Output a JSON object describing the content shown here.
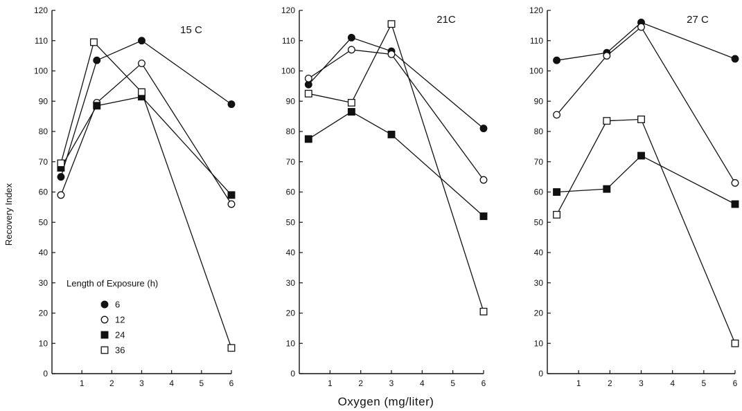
{
  "chart_data": {
    "type": "line",
    "ylabel": "Recovery Index",
    "xlabel": "Oxygen (mg/liter)",
    "ylim": [
      0,
      120
    ],
    "yticks": [
      0,
      10,
      20,
      30,
      40,
      50,
      60,
      70,
      80,
      90,
      100,
      110,
      120
    ],
    "xlim": [
      0,
      6
    ],
    "xticks": [
      1,
      2,
      3,
      4,
      5,
      6
    ],
    "grid": false,
    "legend": {
      "title": "Length of Exposure (h)",
      "placement": "bottom-left of first panel",
      "entries": [
        {
          "label": "6",
          "marker": "filled-circle"
        },
        {
          "label": "12",
          "marker": "open-circle"
        },
        {
          "label": "24",
          "marker": "filled-square"
        },
        {
          "label": "36",
          "marker": "open-square"
        }
      ]
    },
    "panels": [
      {
        "title": "15 C",
        "series": [
          {
            "exposure": "6",
            "marker": "filled-circle",
            "points": [
              [
                0.3,
                65
              ],
              [
                1.5,
                103.5
              ],
              [
                3.0,
                110
              ],
              [
                6.0,
                89
              ]
            ]
          },
          {
            "exposure": "12",
            "marker": "open-circle",
            "points": [
              [
                0.3,
                59
              ],
              [
                1.5,
                89.5
              ],
              [
                3.0,
                102.5
              ],
              [
                6.0,
                56
              ]
            ]
          },
          {
            "exposure": "24",
            "marker": "filled-square",
            "points": [
              [
                0.3,
                68
              ],
              [
                1.5,
                88.5
              ],
              [
                3.0,
                91.5
              ],
              [
                6.0,
                59
              ]
            ]
          },
          {
            "exposure": "36",
            "marker": "open-square",
            "points": [
              [
                0.3,
                69.5
              ],
              [
                1.4,
                109.5
              ],
              [
                3.0,
                93
              ],
              [
                6.0,
                8.5
              ]
            ]
          }
        ]
      },
      {
        "title": "21C",
        "series": [
          {
            "exposure": "6",
            "marker": "filled-circle",
            "points": [
              [
                0.3,
                95.5
              ],
              [
                1.7,
                111
              ],
              [
                3.0,
                106.5
              ],
              [
                6.0,
                81
              ]
            ]
          },
          {
            "exposure": "12",
            "marker": "open-circle",
            "points": [
              [
                0.3,
                97.5
              ],
              [
                1.7,
                107
              ],
              [
                3.0,
                105.5
              ],
              [
                6.0,
                64
              ]
            ]
          },
          {
            "exposure": "24",
            "marker": "filled-square",
            "points": [
              [
                0.3,
                77.5
              ],
              [
                1.7,
                86.5
              ],
              [
                3.0,
                79
              ],
              [
                6.0,
                52
              ]
            ]
          },
          {
            "exposure": "36",
            "marker": "open-square",
            "points": [
              [
                0.3,
                92.5
              ],
              [
                1.7,
                89.5
              ],
              [
                3.0,
                115.5
              ],
              [
                6.0,
                20.5
              ]
            ]
          }
        ]
      },
      {
        "title": "27 C",
        "series": [
          {
            "exposure": "6",
            "marker": "filled-circle",
            "points": [
              [
                0.3,
                103.5
              ],
              [
                1.9,
                106
              ],
              [
                3.0,
                116
              ],
              [
                6.0,
                104
              ]
            ]
          },
          {
            "exposure": "12",
            "marker": "open-circle",
            "points": [
              [
                0.3,
                85.5
              ],
              [
                1.9,
                105
              ],
              [
                3.0,
                114.5
              ],
              [
                6.0,
                63
              ]
            ]
          },
          {
            "exposure": "24",
            "marker": "filled-square",
            "points": [
              [
                0.3,
                60
              ],
              [
                1.9,
                61
              ],
              [
                3.0,
                72
              ],
              [
                6.0,
                56
              ]
            ]
          },
          {
            "exposure": "36",
            "marker": "open-square",
            "points": [
              [
                0.3,
                52.5
              ],
              [
                1.9,
                83.5
              ],
              [
                3.0,
                84
              ],
              [
                6.0,
                10
              ]
            ]
          }
        ]
      }
    ]
  }
}
